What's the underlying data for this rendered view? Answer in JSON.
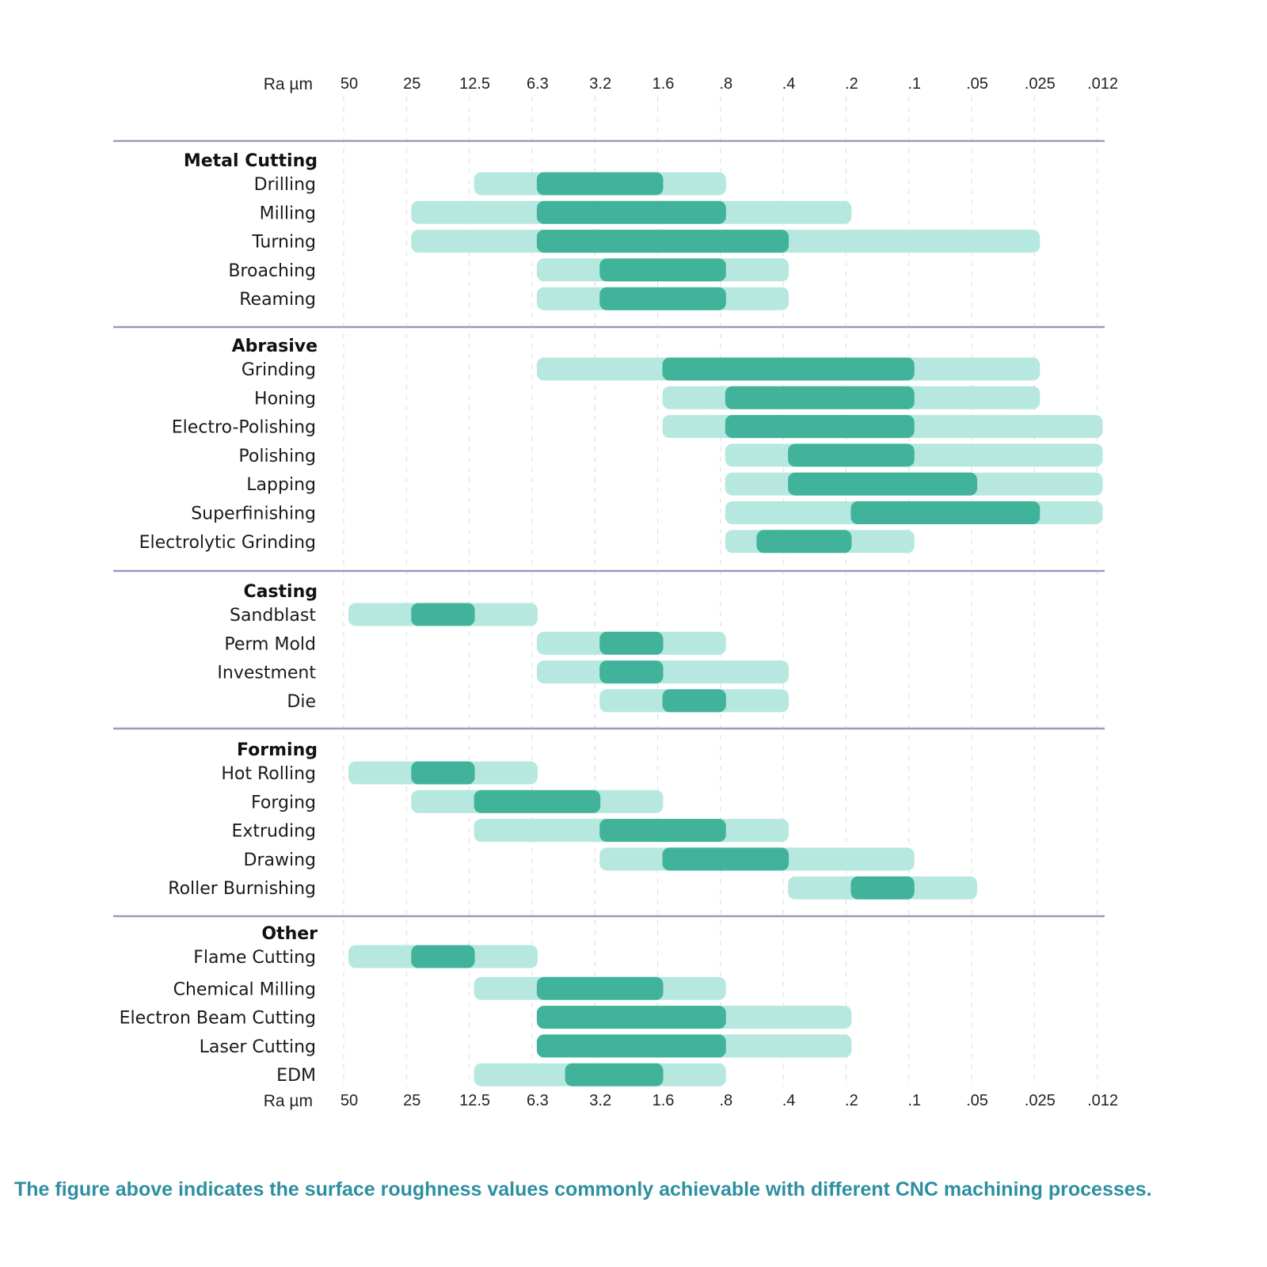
{
  "chart_data": {
    "type": "range-bar",
    "title": "",
    "xlabel": "Ra  µm",
    "axis_title": "Ra  µm",
    "x_scale": "log (halving per tick), reversed",
    "ticks": [
      "50",
      "25",
      "12.5",
      "6.3",
      "3.2",
      "1.6",
      ".8",
      ".4",
      ".2",
      ".1",
      ".05",
      ".025",
      ".012"
    ],
    "tick_values": [
      50,
      25,
      12.5,
      6.3,
      3.2,
      1.6,
      0.8,
      0.4,
      0.2,
      0.1,
      0.05,
      0.025,
      0.012
    ],
    "grid": "vertical dashed at each tick",
    "legend": "none",
    "colors": {
      "common_range": "#41b39b",
      "less_frequent_range": "#b6e8e0",
      "separator": "#9b99c0",
      "caption": "#2d8fa0"
    },
    "groups": [
      {
        "name": "Metal Cutting",
        "processes": [
          {
            "name": "Drilling",
            "full": [
              "12.5",
              ".8"
            ],
            "common": [
              "6.3",
              "1.6"
            ]
          },
          {
            "name": "Milling",
            "full": [
              "25",
              ".2"
            ],
            "common": [
              "6.3",
              ".8"
            ]
          },
          {
            "name": "Turning",
            "full": [
              "25",
              ".025"
            ],
            "common": [
              "6.3",
              ".4"
            ]
          },
          {
            "name": "Broaching",
            "full": [
              "6.3",
              ".4"
            ],
            "common": [
              "3.2",
              ".8"
            ]
          },
          {
            "name": "Reaming",
            "full": [
              "6.3",
              ".4"
            ],
            "common": [
              "3.2",
              ".8"
            ]
          }
        ]
      },
      {
        "name": "Abrasive",
        "processes": [
          {
            "name": "Grinding",
            "full": [
              "6.3",
              ".025"
            ],
            "common": [
              "1.6",
              ".1"
            ]
          },
          {
            "name": "Honing",
            "full": [
              "1.6",
              ".025"
            ],
            "common": [
              ".8",
              ".1"
            ]
          },
          {
            "name": "Electro-Polishing",
            "full": [
              "1.6",
              ".012"
            ],
            "common": [
              ".8",
              ".1"
            ]
          },
          {
            "name": "Polishing",
            "full": [
              ".8",
              ".012"
            ],
            "common": [
              ".4",
              ".1"
            ]
          },
          {
            "name": "Lapping",
            "full": [
              ".8",
              ".012"
            ],
            "common": [
              ".4",
              ".05"
            ]
          },
          {
            "name": "Superfinishing",
            "full": [
              ".8",
              ".012"
            ],
            "common": [
              ".2",
              ".025"
            ]
          },
          {
            "name": "Electrolytic Grinding",
            "full": [
              ".8",
              ".1"
            ],
            "common": [
              "0.6",
              ".2"
            ]
          }
        ]
      },
      {
        "name": "Casting",
        "processes": [
          {
            "name": "Sandblast",
            "full": [
              "50",
              "6.3"
            ],
            "common": [
              "25",
              "12.5"
            ]
          },
          {
            "name": "Perm Mold",
            "full": [
              "6.3",
              ".8"
            ],
            "common": [
              "3.2",
              "1.6"
            ]
          },
          {
            "name": "Investment",
            "full": [
              "6.3",
              ".4"
            ],
            "common": [
              "3.2",
              "1.6"
            ]
          },
          {
            "name": "Die",
            "full": [
              "3.2",
              ".4"
            ],
            "common": [
              "1.6",
              ".8"
            ]
          }
        ]
      },
      {
        "name": "Forming",
        "processes": [
          {
            "name": "Hot Rolling",
            "full": [
              "50",
              "6.3"
            ],
            "common": [
              "25",
              "12.5"
            ]
          },
          {
            "name": "Forging",
            "full": [
              "25",
              "1.6"
            ],
            "common": [
              "12.5",
              "3.2"
            ]
          },
          {
            "name": "Extruding",
            "full": [
              "12.5",
              ".4"
            ],
            "common": [
              "3.2",
              ".8"
            ]
          },
          {
            "name": "Drawing",
            "full": [
              "3.2",
              ".1"
            ],
            "common": [
              "1.6",
              ".4"
            ]
          },
          {
            "name": "Roller Burnishing",
            "full": [
              ".4",
              ".05"
            ],
            "common": [
              ".2",
              ".1"
            ]
          }
        ]
      },
      {
        "name": "Other",
        "processes": [
          {
            "name": "Flame Cutting",
            "full": [
              "50",
              "6.3"
            ],
            "common": [
              "25",
              "12.5"
            ]
          },
          {
            "name": "Chemical Milling",
            "full": [
              "12.5",
              ".8"
            ],
            "common": [
              "6.3",
              "1.6"
            ]
          },
          {
            "name": "Electron Beam Cutting",
            "full": [
              "6.3",
              ".2"
            ],
            "common": [
              "6.3",
              ".8"
            ]
          },
          {
            "name": "Laser Cutting",
            "full": [
              "6.3",
              ".2"
            ],
            "common": [
              "6.3",
              ".8"
            ]
          },
          {
            "name": "EDM",
            "full": [
              "12.5",
              ".8"
            ],
            "common": [
              "4.5",
              "1.6"
            ]
          }
        ]
      }
    ],
    "bar_index_ranges": [
      [
        [
          2,
          6
        ],
        [
          3,
          5
        ]
      ],
      [
        [
          1,
          8
        ],
        [
          3,
          6
        ]
      ],
      [
        [
          1,
          11
        ],
        [
          3,
          7
        ]
      ],
      [
        [
          3,
          7
        ],
        [
          4,
          6
        ]
      ],
      [
        [
          3,
          7
        ],
        [
          4,
          6
        ]
      ],
      [
        [
          3,
          11
        ],
        [
          5,
          9
        ]
      ],
      [
        [
          5,
          11
        ],
        [
          6,
          9
        ]
      ],
      [
        [
          5,
          12
        ],
        [
          6,
          9
        ]
      ],
      [
        [
          6,
          12
        ],
        [
          7,
          9
        ]
      ],
      [
        [
          6,
          12
        ],
        [
          7,
          10
        ]
      ],
      [
        [
          6,
          12
        ],
        [
          8,
          11
        ]
      ],
      [
        [
          6,
          9
        ],
        [
          6.5,
          8
        ]
      ],
      [
        [
          0,
          3
        ],
        [
          1,
          2
        ]
      ],
      [
        [
          3,
          6
        ],
        [
          4,
          5
        ]
      ],
      [
        [
          3,
          7
        ],
        [
          4,
          5
        ]
      ],
      [
        [
          4,
          7
        ],
        [
          5,
          6
        ]
      ],
      [
        [
          0,
          3
        ],
        [
          1,
          2
        ]
      ],
      [
        [
          1,
          5
        ],
        [
          2,
          4
        ]
      ],
      [
        [
          2,
          7
        ],
        [
          4,
          6
        ]
      ],
      [
        [
          4,
          9
        ],
        [
          5,
          7
        ]
      ],
      [
        [
          7,
          10
        ],
        [
          8,
          9
        ]
      ],
      [
        [
          0,
          3
        ],
        [
          1,
          2
        ]
      ],
      [
        [
          2,
          6
        ],
        [
          3,
          5
        ]
      ],
      [
        [
          3,
          8
        ],
        [
          3,
          6
        ]
      ],
      [
        [
          3,
          8
        ],
        [
          3,
          6
        ]
      ],
      [
        [
          2,
          6
        ],
        [
          3.45,
          5
        ]
      ]
    ]
  },
  "caption": "The figure above indicates the surface roughness values commonly achievable with different CNC machining processes."
}
